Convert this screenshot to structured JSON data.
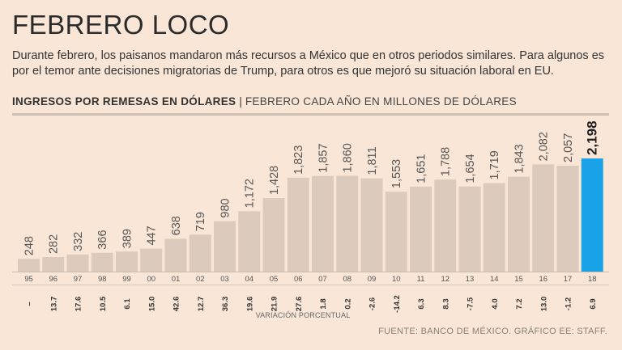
{
  "title": "FEBRERO LOCO",
  "subtitle": "Durante febrero, los paisanos mandaron más recursos a México que en otros periodos similares. Para algunos es por el temor ante decisiones migratorias de Trump, para otros es que mejoró su situación laboral en EU.",
  "header": {
    "bold": "INGRESOS POR REMESAS EN DÓLARES",
    "separator": "|",
    "light": "FEBRERO CADA AÑO EN MILLONES DE DÓLARES"
  },
  "footer": "FUENTE: BANCO DE MÉXICO.  GRÁFICO EE: STAFF.",
  "colors": {
    "bar": "#dccbbc",
    "highlight": "#1aa3e6",
    "label": "#3a3a3a"
  },
  "chart_data": {
    "type": "bar",
    "title": "INGRESOS POR REMESAS EN DÓLARES",
    "subtitle": "FEBRERO CADA AÑO EN MILLONES DE DÓLARES",
    "categories": [
      "95",
      "96",
      "97",
      "98",
      "99",
      "00",
      "01",
      "02",
      "03",
      "04",
      "05",
      "06",
      "07",
      "08",
      "09",
      "10",
      "11",
      "12",
      "13",
      "14",
      "15",
      "16",
      "17",
      "18"
    ],
    "values": [
      248,
      282,
      332,
      366,
      389,
      447,
      638,
      719,
      980,
      1172,
      1428,
      1823,
      1857,
      1860,
      1811,
      1553,
      1651,
      1788,
      1654,
      1719,
      1843,
      2082,
      2057,
      2198
    ],
    "value_labels": [
      "248",
      "282",
      "332",
      "366",
      "389",
      "447",
      "638",
      "719",
      "980",
      "1,172",
      "1,428",
      "1,823",
      "1,857",
      "1,860",
      "1,811",
      "1,553",
      "1,651",
      "1,788",
      "1,654",
      "1,719",
      "1,843",
      "2,082",
      "2,057",
      "2,198"
    ],
    "pct_change_labels": [
      "–",
      "13.7",
      "17.6",
      "10.5",
      "6.1",
      "15.0",
      "42.6",
      "12.7",
      "36.3",
      "19.6",
      "21.9",
      "27.6",
      "1.8",
      "0.2",
      "-2.6",
      "-14.2",
      "6.3",
      "8.3",
      "-7.5",
      "4.0",
      "7.2",
      "13.0",
      "-1.2",
      "6.9"
    ],
    "pct_change_caption": "VARIACIÓN PORCENTUAL",
    "highlight_index": 23,
    "ylim": [
      0,
      2198
    ],
    "xlabel": "",
    "ylabel": ""
  }
}
